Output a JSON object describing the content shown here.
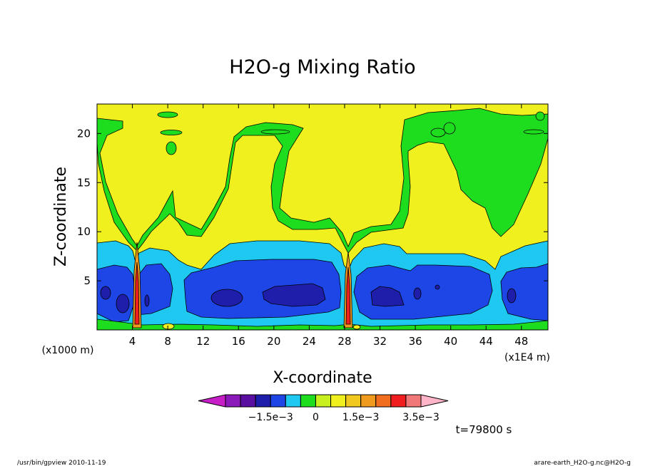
{
  "chart_data": {
    "type": "heatmap",
    "title": "H2O-g Mixing Ratio",
    "xlabel": "X-coordinate",
    "ylabel": "Z-coordinate",
    "x_unit": "(x1E4 m)",
    "y_unit": "(x1000 m)",
    "xlim": [
      0,
      51
    ],
    "ylim": [
      0,
      23
    ],
    "x_ticks": [
      4,
      8,
      12,
      16,
      20,
      24,
      28,
      32,
      36,
      40,
      44,
      48
    ],
    "y_ticks": [
      5,
      10,
      15,
      20
    ],
    "grid": false,
    "time_label": "t=79800 s",
    "colorbar": {
      "orientation": "horizontal",
      "placement": "bottom",
      "colors": [
        "#c81ec8",
        "#8c19b9",
        "#5a0fa0",
        "#1e1eaa",
        "#1e46e6",
        "#1ec8f0",
        "#1edc1e",
        "#c8f01e",
        "#f0f01e",
        "#f0c81e",
        "#f09b1e",
        "#f06e1e",
        "#f01e1e",
        "#f07878",
        "#ffb4c8"
      ],
      "labels": [
        {
          "text": "−1.5e−3",
          "value": -0.0015
        },
        {
          "text": "0",
          "value": 0
        },
        {
          "text": "1.5e−3",
          "value": 0.0015
        },
        {
          "text": "3.5e−3",
          "value": 0.0035
        }
      ]
    },
    "fields": {
      "colors": {
        "yellow": "#f0f01e",
        "green": "#1edc1e",
        "cyan": "#1ec8f0",
        "blue": "#1e46e6",
        "navy": "#1e1eaa",
        "orange": "#f09b1e",
        "red": "#f01e1e"
      },
      "outline": "#000000"
    }
  },
  "footer": {
    "left": "/usr/bin/gpview   2010-11-19",
    "right": "arare-earth_H2O-g.nc@H2O-g"
  }
}
